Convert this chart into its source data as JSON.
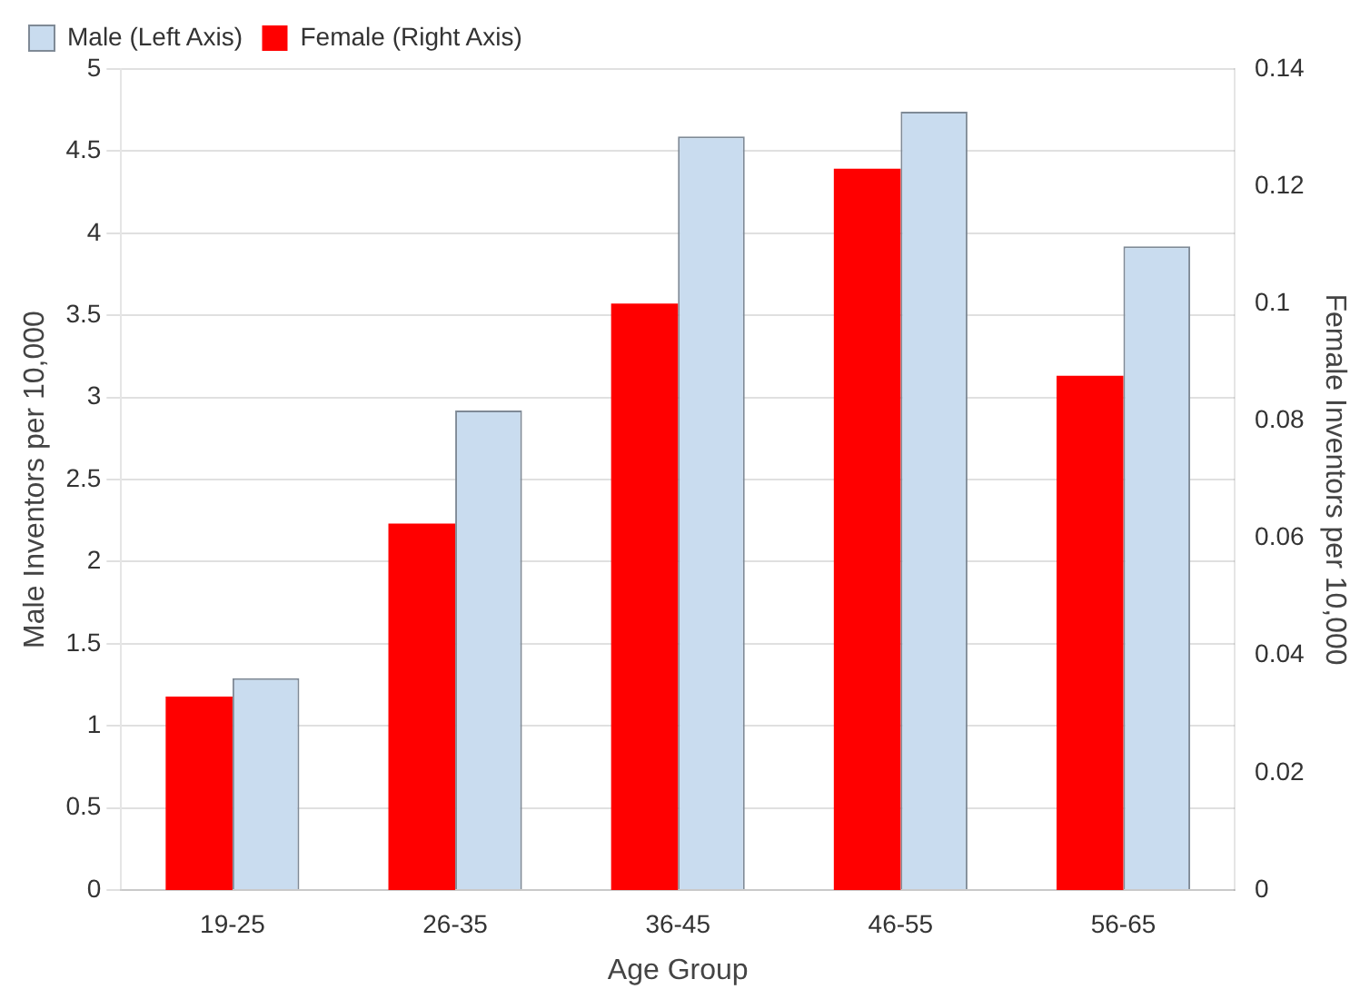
{
  "chart_data": {
    "type": "bar",
    "xlabel": "Age Group",
    "ylabel": "Male Inventors per 10,000",
    "y2label": "Female Inventors per 10,000",
    "categories": [
      "19-25",
      "26-35",
      "36-45",
      "46-55",
      "56-65"
    ],
    "series": [
      {
        "name": "Female (Right Axis)",
        "color": "#ff0000",
        "axis": "y2",
        "values": [
          0.033,
          0.0625,
          0.1,
          0.123,
          0.0877
        ]
      },
      {
        "name": "Male (Left Axis)",
        "color": "#c9dcef",
        "values": [
          1.29,
          2.92,
          4.59,
          4.74,
          3.92
        ]
      }
    ],
    "ylim": [
      0,
      5
    ],
    "yticks": [
      0,
      0.5,
      1,
      1.5,
      2,
      2.5,
      3,
      3.5,
      4,
      4.5,
      5
    ],
    "y2lim": [
      0,
      0.14
    ],
    "y2ticks": [
      0,
      0.02,
      0.04,
      0.06,
      0.08,
      0.1,
      0.12,
      0.14
    ],
    "grid": "y",
    "legend": "top left"
  }
}
